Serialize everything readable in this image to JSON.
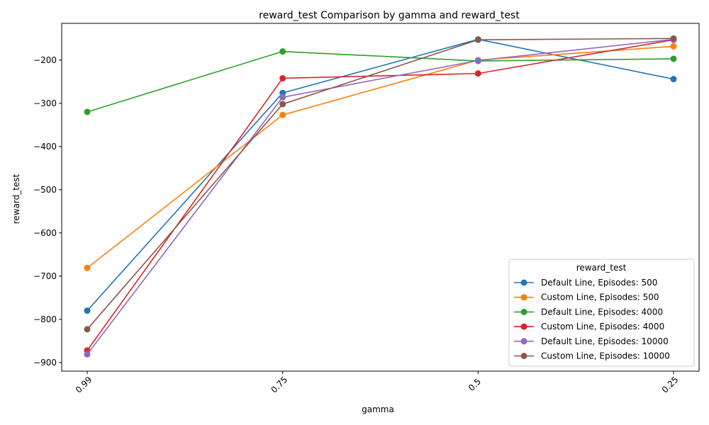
{
  "chart_data": {
    "type": "line",
    "title": "reward_test Comparison by gamma and reward_test",
    "xlabel": "gamma",
    "ylabel": "reward_test",
    "categories": [
      "0.99",
      "0.75",
      "0.5",
      "0.25"
    ],
    "ylim": [
      -920,
      -115
    ],
    "yticks": [
      -900,
      -800,
      -700,
      -600,
      -500,
      -400,
      -300,
      -200
    ],
    "yticks_labels": [
      "−900",
      "−800",
      "−700",
      "−600",
      "−500",
      "−400",
      "−300",
      "−200"
    ],
    "grid": false,
    "legend": {
      "title": "reward_test",
      "placement": "lower right"
    },
    "series": [
      {
        "name": "Default Line, Episodes: 500",
        "color": "#1f77b4",
        "values": [
          -780,
          -276,
          -152,
          -244
        ]
      },
      {
        "name": "Custom Line, Episodes: 500",
        "color": "#ff7f0e",
        "values": [
          -681,
          -327,
          -200,
          -168
        ]
      },
      {
        "name": "Default Line, Episodes: 4000",
        "color": "#2ca02c",
        "values": [
          -320,
          -180,
          -202,
          -197
        ]
      },
      {
        "name": "Custom Line, Episodes: 4000",
        "color": "#d62728",
        "values": [
          -872,
          -242,
          -231,
          -153
        ]
      },
      {
        "name": "Default Line, Episodes: 10000",
        "color": "#9467bd",
        "values": [
          -881,
          -286,
          -201,
          -152
        ]
      },
      {
        "name": "Custom Line, Episodes: 10000",
        "color": "#8c564b",
        "values": [
          -823,
          -302,
          -153,
          -150
        ]
      }
    ]
  }
}
